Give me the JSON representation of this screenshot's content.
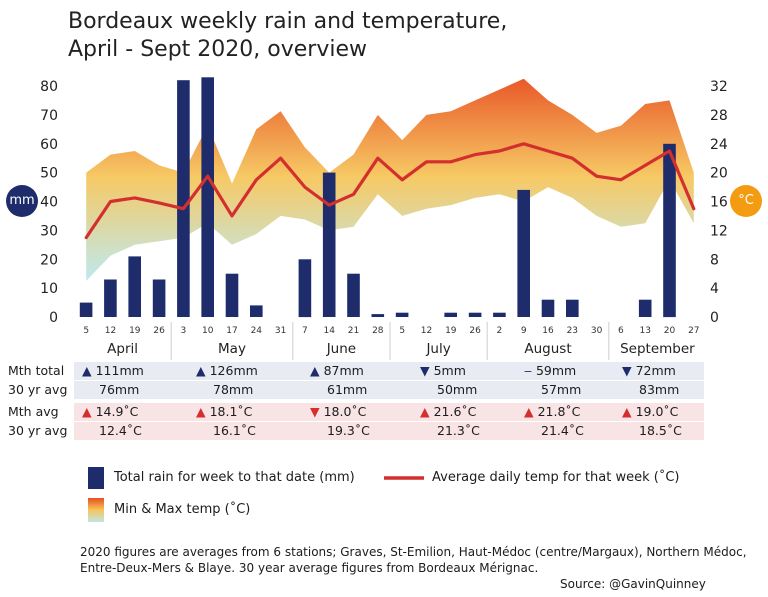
{
  "title_line1": "Bordeaux weekly rain and temperature,",
  "title_line2": "April - Sept 2020, overview",
  "left_axis_badge": "mm",
  "right_axis_badge": "°C",
  "colors": {
    "rain": "#1f2c6b",
    "temp_line": "#d32f2f",
    "badge_left": "#1f2c6b",
    "badge_right": "#f39c12",
    "band_top": "#e8501e",
    "band_mid": "#f6c65c",
    "band_bottom": "#bfe6e4",
    "row_rain_bg": "#e8ebf2",
    "row_temp_bg": "#f8e4e4"
  },
  "chart_data": {
    "type": "bar",
    "left_axis": {
      "ylim": [
        0,
        80
      ],
      "ticks": [
        0,
        10,
        20,
        30,
        40,
        50,
        60,
        70,
        80
      ],
      "unit": "mm"
    },
    "right_axis": {
      "ylim": [
        0,
        32
      ],
      "ticks": [
        0,
        4,
        8,
        12,
        16,
        20,
        24,
        28,
        32
      ],
      "unit": "°C"
    },
    "months": [
      "April",
      "May",
      "June",
      "July",
      "August",
      "September"
    ],
    "x": [
      "5",
      "12",
      "19",
      "26",
      "3",
      "10",
      "17",
      "24",
      "31",
      "7",
      "14",
      "21",
      "28",
      "5",
      "12",
      "19",
      "26",
      "2",
      "9",
      "16",
      "23",
      "30",
      "6",
      "13",
      "20",
      "27"
    ],
    "series": [
      {
        "name": "Total rain for week to that date (mm)",
        "type": "bar",
        "values": [
          5,
          13,
          21,
          13,
          82,
          83,
          15,
          4,
          0,
          20,
          50,
          15,
          1,
          1.5,
          0,
          1.5,
          1.5,
          1.5,
          44,
          6,
          6,
          0,
          0,
          6,
          60,
          0
        ]
      },
      {
        "name": "Average daily temp for that week (°C)",
        "type": "line",
        "values": [
          11,
          16,
          16.5,
          15.8,
          15,
          19.5,
          14,
          19,
          22,
          18,
          15.5,
          17,
          22,
          19,
          21.5,
          21.5,
          22.5,
          23,
          24,
          23,
          22,
          19.5,
          19,
          21,
          23,
          15
        ]
      },
      {
        "name": "Min & Max temp (°C)",
        "type": "area",
        "min": [
          5,
          8.5,
          10,
          10.5,
          11,
          13,
          10,
          11.5,
          14,
          13.5,
          12,
          12.5,
          17,
          14,
          15,
          15.5,
          16.5,
          17,
          16,
          18,
          16.5,
          14,
          12.5,
          13,
          19,
          13
        ],
        "max": [
          20,
          22.5,
          23,
          21,
          20,
          26.5,
          18.5,
          26,
          28.5,
          23.5,
          20,
          22.5,
          28,
          24.5,
          28,
          28.5,
          30,
          31.5,
          33,
          30,
          28,
          25.5,
          26.5,
          29.5,
          30,
          20
        ]
      }
    ],
    "legend_position": "bottom",
    "grid": false
  },
  "table": {
    "row_labels": [
      "Mth total",
      "30 yr avg",
      "Mth avg",
      "30 yr avg"
    ],
    "mth_total": [
      {
        "arrow": "▲",
        "value": "111mm"
      },
      {
        "arrow": "▲",
        "value": "126mm"
      },
      {
        "arrow": "▲",
        "value": "87mm"
      },
      {
        "arrow": "▼",
        "value": "5mm"
      },
      {
        "arrow": "‒",
        "value": "59mm"
      },
      {
        "arrow": "▼",
        "value": "72mm"
      }
    ],
    "rain_30yr": [
      "76mm",
      "78mm",
      "61mm",
      "50mm",
      "57mm",
      "83mm"
    ],
    "mth_avg": [
      {
        "arrow": "▲",
        "value": "14.9˚C"
      },
      {
        "arrow": "▲",
        "value": "18.1˚C"
      },
      {
        "arrow": "▼",
        "value": "18.0˚C"
      },
      {
        "arrow": "▲",
        "value": "21.6˚C"
      },
      {
        "arrow": "▲",
        "value": "21.8˚C"
      },
      {
        "arrow": "▲",
        "value": "19.0˚C"
      }
    ],
    "temp_30yr": [
      "12.4˚C",
      "16.1˚C",
      "19.3˚C",
      "21.3˚C",
      "21.4˚C",
      "18.5˚C"
    ]
  },
  "legend": {
    "rain": "Total rain for week to that date (mm)",
    "temp": "Average daily temp for that week (˚C)",
    "band": "Min & Max temp (˚C)"
  },
  "note_line1": "2020 figures are averages from 6 stations; Graves, St-Emilion, Haut-Médoc (centre/Margaux), Northern Médoc,",
  "note_line2": "Entre-Deux-Mers & Blaye. 30 year average figures from Bordeaux Mérignac.",
  "source": "Source: @GavinQuinney"
}
